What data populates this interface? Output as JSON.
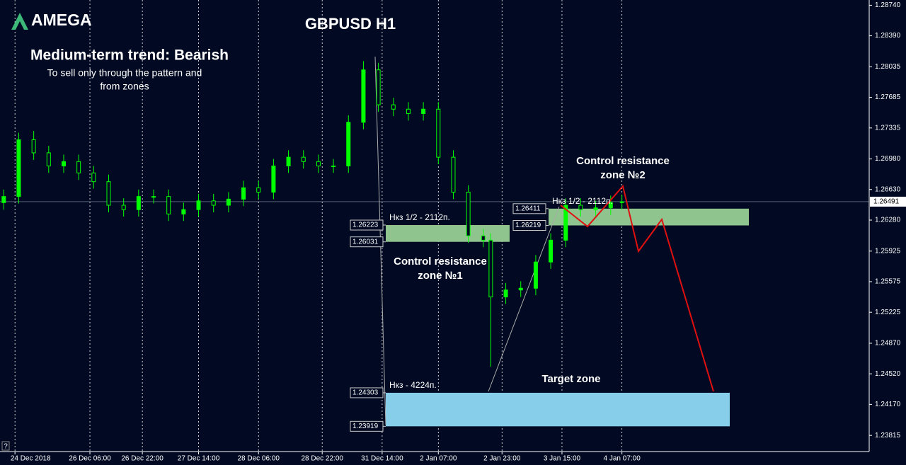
{
  "chart_data": {
    "type": "candlestick",
    "logo": "AMEGA",
    "title": "GBPUSD H1",
    "trend": "Medium-term trend: Bearish",
    "subtitle": [
      "To sell only through the pattern and",
      "from zones"
    ],
    "help_icon": "?",
    "up_color": "#00ff00",
    "down_color": "#010a22",
    "wick_color": "#00ff00",
    "x": [
      1,
      5,
      9,
      13,
      17,
      21,
      25,
      29,
      33,
      37,
      41,
      45,
      49,
      53,
      57,
      61,
      65,
      69,
      73,
      77,
      81,
      85,
      89,
      93,
      97,
      101,
      105,
      109,
      113,
      117,
      121,
      125,
      129,
      131,
      135,
      139,
      143,
      147,
      151,
      155,
      159,
      163,
      166
    ],
    "open": [
      1.2648,
      1.2655,
      1.272,
      1.2705,
      1.269,
      1.2695,
      1.2682,
      1.2672,
      1.2645,
      1.264,
      1.2655,
      1.2655,
      1.2635,
      1.264,
      1.265,
      1.2645,
      1.2652,
      1.2665,
      1.266,
      1.269,
      1.27,
      1.2695,
      1.269,
      1.269,
      1.274,
      1.28,
      1.276,
      1.2755,
      1.275,
      1.2755,
      1.27,
      1.266,
      1.261,
      1.2605,
      1.254,
      1.2548,
      1.255,
      1.258,
      1.2605,
      1.2645,
      1.264,
      1.2642,
      1.2648
    ],
    "high": [
      1.2663,
      1.2728,
      1.273,
      1.2713,
      1.2703,
      1.2703,
      1.269,
      1.268,
      1.2653,
      1.2663,
      1.2663,
      1.2663,
      1.2648,
      1.2658,
      1.2658,
      1.266,
      1.2673,
      1.2673,
      1.2698,
      1.2708,
      1.2708,
      1.2703,
      1.2698,
      1.2748,
      1.281,
      1.2808,
      1.2768,
      1.2763,
      1.2763,
      1.2763,
      1.2708,
      1.2668,
      1.2618,
      1.2613,
      1.2556,
      1.2558,
      1.2588,
      1.2613,
      1.2653,
      1.2653,
      1.265,
      1.2656,
      1.2657
    ],
    "low": [
      1.264,
      1.2647,
      1.2697,
      1.2682,
      1.2682,
      1.2674,
      1.2664,
      1.2637,
      1.2632,
      1.2632,
      1.2647,
      1.2627,
      1.2627,
      1.2632,
      1.2637,
      1.2637,
      1.2644,
      1.2652,
      1.2652,
      1.2682,
      1.2687,
      1.2682,
      1.2682,
      1.2682,
      1.2732,
      1.2752,
      1.2747,
      1.2742,
      1.2742,
      1.2692,
      1.2652,
      1.2602,
      1.2597,
      1.246,
      1.2532,
      1.254,
      1.2542,
      1.2572,
      1.2597,
      1.2632,
      1.2632,
      1.2634,
      1.264
    ],
    "close": [
      1.2655,
      1.272,
      1.2705,
      1.269,
      1.2695,
      1.2682,
      1.2672,
      1.2645,
      1.264,
      1.2655,
      1.2655,
      1.2635,
      1.264,
      1.265,
      1.2645,
      1.2652,
      1.2665,
      1.266,
      1.269,
      1.27,
      1.2695,
      1.269,
      1.269,
      1.274,
      1.28,
      1.276,
      1.2755,
      1.275,
      1.2755,
      1.27,
      1.266,
      1.261,
      1.2605,
      1.254,
      1.2548,
      1.255,
      1.258,
      1.2605,
      1.2645,
      1.264,
      1.2642,
      1.2648,
      1.2649
    ],
    "xlim": [
      0,
      232
    ],
    "xticks": [
      {
        "value": 4,
        "label": "24 Dec 2018"
      },
      {
        "value": 24,
        "label": "26 Dec 06:00"
      },
      {
        "value": 38,
        "label": "26 Dec 22:00"
      },
      {
        "value": 53,
        "label": "27 Dec 14:00"
      },
      {
        "value": 69,
        "label": "28 Dec 06:00"
      },
      {
        "value": 86,
        "label": "28 Dec 22:00"
      },
      {
        "value": 102,
        "label": "31 Dec 14:00"
      },
      {
        "value": 117,
        "label": "2 Jan 07:00"
      },
      {
        "value": 134,
        "label": "2 Jan 23:00"
      },
      {
        "value": 150,
        "label": "3 Jan 15:00"
      },
      {
        "value": 166,
        "label": "4 Jan 07:00"
      }
    ],
    "ylim": [
      1.2363,
      1.288
    ],
    "yticks": [
      {
        "value": 1.2874,
        "label": "1.28740"
      },
      {
        "value": 1.2839,
        "label": "1.28390"
      },
      1.28035,
      1.27685,
      1.27335,
      {
        "value": 1.2698,
        "label": "1.26980"
      },
      {
        "value": 1.2663,
        "label": "1.26630"
      },
      {
        "value": 1.2628,
        "label": "1.26280"
      },
      1.25925,
      1.25575,
      1.25225,
      {
        "value": 1.2487,
        "label": "1.24870"
      },
      {
        "value": 1.2452,
        "label": "1.24520"
      },
      {
        "value": 1.2417,
        "label": "1.24170"
      },
      1.23815
    ],
    "current_price": 1.26491,
    "zones": [
      {
        "name": "Control resistance zone №1",
        "note": "Нкз 1/2 - 2112п.",
        "top": 1.26223,
        "bottom": 1.26031,
        "color": "#8fc48f"
      },
      {
        "name": "Control resistance zone №2",
        "note": "Нкз 1/2 - 2112п.",
        "top": 1.26411,
        "bottom": 1.26219,
        "color": "#8fc48f"
      },
      {
        "name": "Target zone",
        "note": "Нкз - 4224п.",
        "top": 1.24303,
        "bottom": 1.23919,
        "color": "#87ceeb"
      }
    ]
  }
}
